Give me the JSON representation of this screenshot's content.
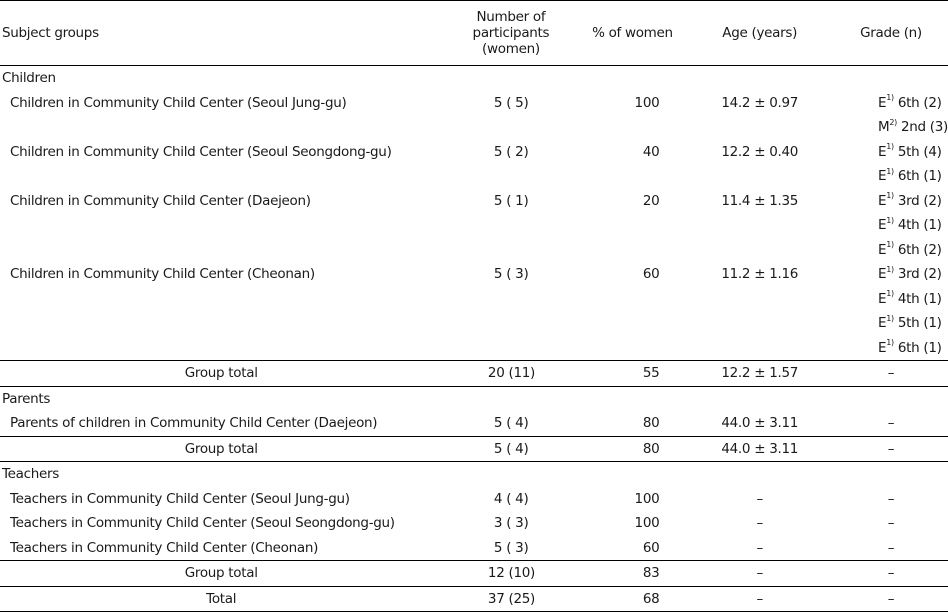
{
  "header": {
    "subject": "Subject groups",
    "number_l1": "Number of",
    "number_l2": "participants",
    "number_l3": "(women)",
    "pct": "% of women",
    "age": "Age (years)",
    "grade": "Grade (n)"
  },
  "groups": {
    "children": {
      "label": "Children",
      "rows": [
        {
          "name": "Children in Community Child Center (Seoul Jung-gu)",
          "num": "5 (  5)",
          "pct": "100",
          "age": "14.2 ± 0.97",
          "grades": [
            {
              "sup_pre": "E",
              "sup": "1)",
              "text": " 6th (2)"
            },
            {
              "sup_pre": "M",
              "sup": "2)",
              "text": " 2nd (3)"
            }
          ]
        },
        {
          "name": "Children in Community Child Center (Seoul Seongdong-gu)",
          "num": "5 (  2)",
          "pct": "40",
          "age": "12.2 ± 0.40",
          "grades": [
            {
              "sup_pre": "E",
              "sup": "1)",
              "text": " 5th (4)"
            },
            {
              "sup_pre": "E",
              "sup": "1)",
              "text": " 6th (1)"
            }
          ]
        },
        {
          "name": "Children in Community Child Center (Daejeon)",
          "num": "5 (  1)",
          "pct": "20",
          "age": "11.4 ± 1.35",
          "grades": [
            {
              "sup_pre": "E",
              "sup": "1)",
              "text": " 3rd (2)"
            },
            {
              "sup_pre": "E",
              "sup": "1)",
              "text": " 4th (1)"
            },
            {
              "sup_pre": "E",
              "sup": "1)",
              "text": " 6th (2)"
            }
          ]
        },
        {
          "name": "Children in Community Child Center (Cheonan)",
          "num": "5 (  3)",
          "pct": "60",
          "age": "11.2 ± 1.16",
          "grades": [
            {
              "sup_pre": "E",
              "sup": "1)",
              "text": " 3rd (2)"
            },
            {
              "sup_pre": "E",
              "sup": "1)",
              "text": " 4th (1)"
            },
            {
              "sup_pre": "E",
              "sup": "1)",
              "text": " 5th (1)"
            },
            {
              "sup_pre": "E",
              "sup": "1)",
              "text": " 6th (1)"
            }
          ]
        }
      ],
      "total": {
        "label": "Group total",
        "num": "20 (11)",
        "pct": "55",
        "age": "12.2 ± 1.57",
        "grade": "–"
      }
    },
    "parents": {
      "label": "Parents",
      "rows": [
        {
          "name": "Parents of children in Community Child Center (Daejeon)",
          "num": "5 (  4)",
          "pct": "80",
          "age": "44.0 ± 3.11",
          "grade": "–"
        }
      ],
      "total": {
        "label": "Group total",
        "num": "5 (  4)",
        "pct": "80",
        "age": "44.0 ± 3.11",
        "grade": "–"
      }
    },
    "teachers": {
      "label": "Teachers",
      "rows": [
        {
          "name": "Teachers in Community Child Center (Seoul Jung-gu)",
          "num": "4 (  4)",
          "pct": "100",
          "age": "–",
          "grade": "–"
        },
        {
          "name": "Teachers in Community Child Center (Seoul Seongdong-gu)",
          "num": "3 (  3)",
          "pct": "100",
          "age": "–",
          "grade": "–"
        },
        {
          "name": "Teachers in Community Child Center (Cheonan)",
          "num": "5 (  3)",
          "pct": "60",
          "age": "–",
          "grade": "–"
        }
      ],
      "total": {
        "label": "Group total",
        "num": "12 (10)",
        "pct": "83",
        "age": "–",
        "grade": "–"
      }
    }
  },
  "overall": {
    "label": "Total",
    "num": "37 (25)",
    "pct": "68",
    "age": "–",
    "grade": "–"
  }
}
